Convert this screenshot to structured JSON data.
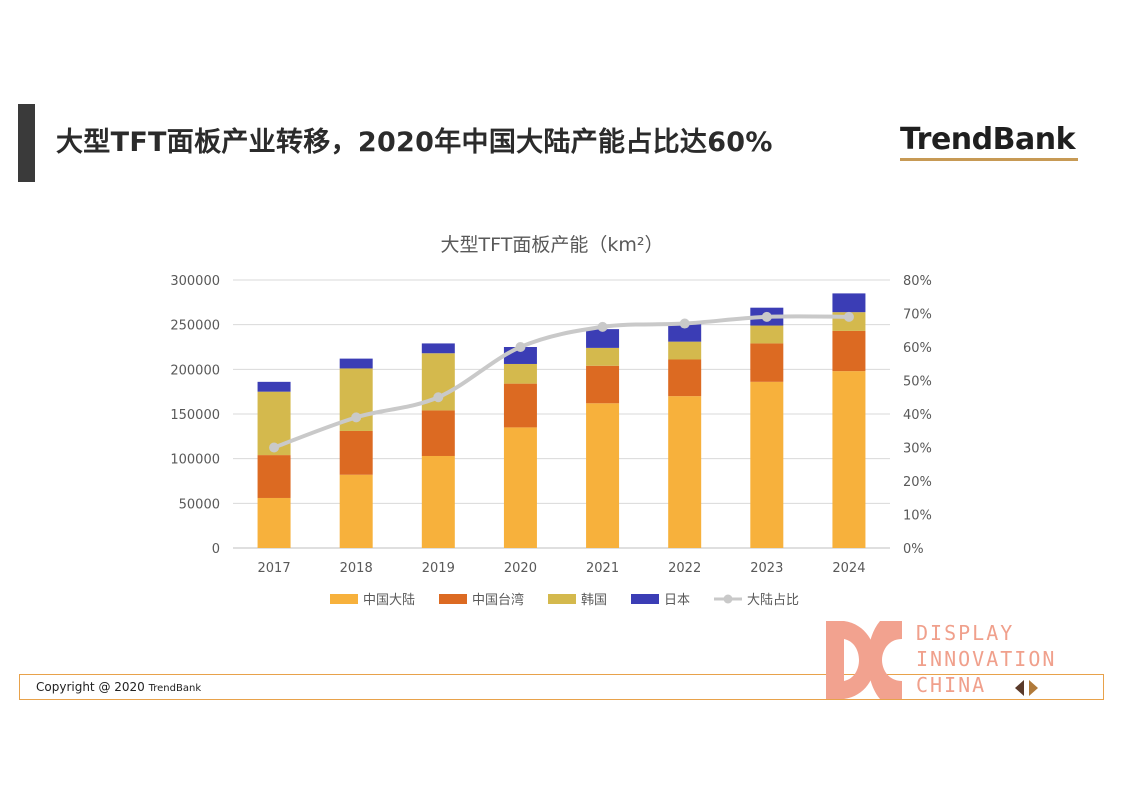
{
  "slide": {
    "title": "大型TFT面板产业转移，2020年中国大陆产能占比达60%",
    "brand": "TrendBank"
  },
  "footer": {
    "copyright": "Copyright @ 2020 ",
    "brand": "TrendBank"
  },
  "watermark": {
    "lines": [
      "DISPLAY",
      "INNOVATION",
      "CHINA"
    ],
    "color": "#f0a08c"
  },
  "colors": {
    "accent_bar": "#3a3a3a",
    "footer_border": "#e8a24b",
    "brand_underline": "#c79a55"
  },
  "chart_data": {
    "type": "bar",
    "stacked": true,
    "title": "大型TFT面板产能（km²）",
    "categories": [
      "2017",
      "2018",
      "2019",
      "2020",
      "2021",
      "2022",
      "2023",
      "2024"
    ],
    "series": [
      {
        "name": "中国大陆",
        "color": "#f7b13c",
        "values": [
          56000,
          82000,
          103000,
          135000,
          162000,
          170000,
          186000,
          198000
        ]
      },
      {
        "name": "中国台湾",
        "color": "#dc6a22",
        "values": [
          48000,
          49000,
          51000,
          49000,
          42000,
          41000,
          43000,
          45000
        ]
      },
      {
        "name": "韩国",
        "color": "#d4b94d",
        "values": [
          71000,
          70000,
          64000,
          22000,
          20000,
          20000,
          20000,
          21000
        ]
      },
      {
        "name": "日本",
        "color": "#3b3db5",
        "values": [
          11000,
          11000,
          11000,
          19000,
          21000,
          21000,
          20000,
          21000
        ]
      }
    ],
    "line_series": {
      "name": "大陆占比",
      "color": "#c9c9c9",
      "axis": "right",
      "values": [
        0.3,
        0.39,
        0.45,
        0.6,
        0.66,
        0.67,
        0.69,
        0.69
      ]
    },
    "yticks_left": [
      "0",
      "50000",
      "100000",
      "150000",
      "200000",
      "250000",
      "300000"
    ],
    "yticks_right": [
      "0%",
      "10%",
      "20%",
      "30%",
      "40%",
      "50%",
      "60%",
      "70%",
      "80%"
    ],
    "ylim_left": [
      0,
      300000
    ],
    "ylim_right": [
      0,
      0.8
    ],
    "grid": true,
    "legend_position": "bottom"
  }
}
